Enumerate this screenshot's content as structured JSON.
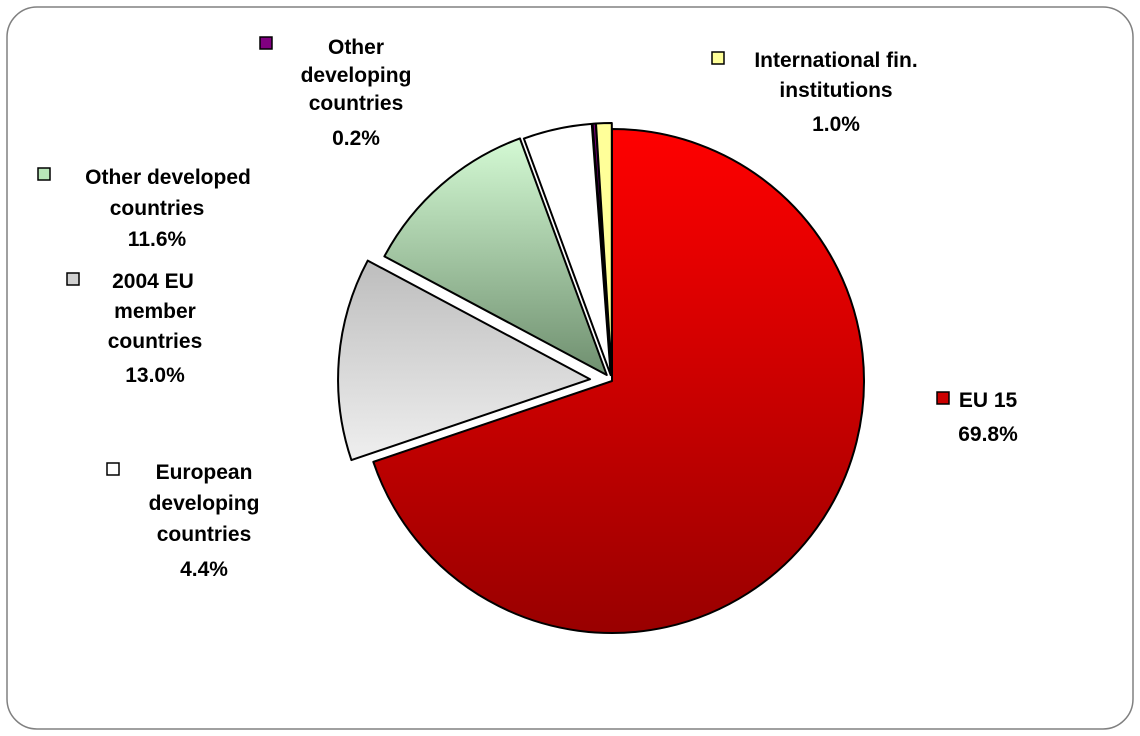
{
  "chart_data": {
    "type": "pie",
    "title": "",
    "slices": [
      {
        "name": "EU 15",
        "value": 69.8,
        "percent_label": "69.8%",
        "label_lines": [
          "EU 15"
        ],
        "color_top": "#ff0000",
        "color_bottom": "#990000",
        "marker_color": "#cc0000"
      },
      {
        "name": "European developing countries",
        "value": 4.4,
        "percent_label": "4.4%",
        "label_lines": [
          "European",
          "developing",
          "countries"
        ],
        "color_top": "#ffffff",
        "color_bottom": "#ffffff",
        "marker_color": "#ffffff"
      },
      {
        "name": "2004 EU member countries",
        "value": 13.0,
        "percent_label": "13.0%",
        "label_lines": [
          "2004 EU",
          "member",
          "countries"
        ],
        "color_top": "#bdbdbd",
        "color_bottom": "#ececec",
        "marker_color": "#d0d0d0"
      },
      {
        "name": "Other developed countries",
        "value": 11.6,
        "percent_label": "11.6%",
        "label_lines": [
          "Other developed",
          "countries"
        ],
        "color_top": "#ccf5cc",
        "color_bottom": "#7a9a7a",
        "marker_color": "#b8e6b8"
      },
      {
        "name": "European developing countries (small)",
        "value": 4.4,
        "percent_label": "",
        "label_lines": [],
        "color_top": "#ffffff",
        "color_bottom": "#ffffff",
        "marker_color": "#ffffff"
      },
      {
        "name": "Other developing countries",
        "value": 0.2,
        "percent_label": "0.2%",
        "label_lines": [
          "Other",
          "developing",
          "countries"
        ],
        "color_top": "#800080",
        "color_bottom": "#800080",
        "marker_color": "#800080"
      },
      {
        "name": "International fin. institutions",
        "value": 1.0,
        "percent_label": "1.0%",
        "label_lines": [
          "International fin.",
          "institutions"
        ],
        "color_top": "#ffff99",
        "color_bottom": "#ffff99",
        "marker_color": "#ffff99"
      }
    ],
    "legend_placement": "labels-around-pie",
    "exploded_slice": "2004 EU member countries",
    "colors": {
      "frame_border": "#808080",
      "slice_outline": "#000000"
    }
  }
}
